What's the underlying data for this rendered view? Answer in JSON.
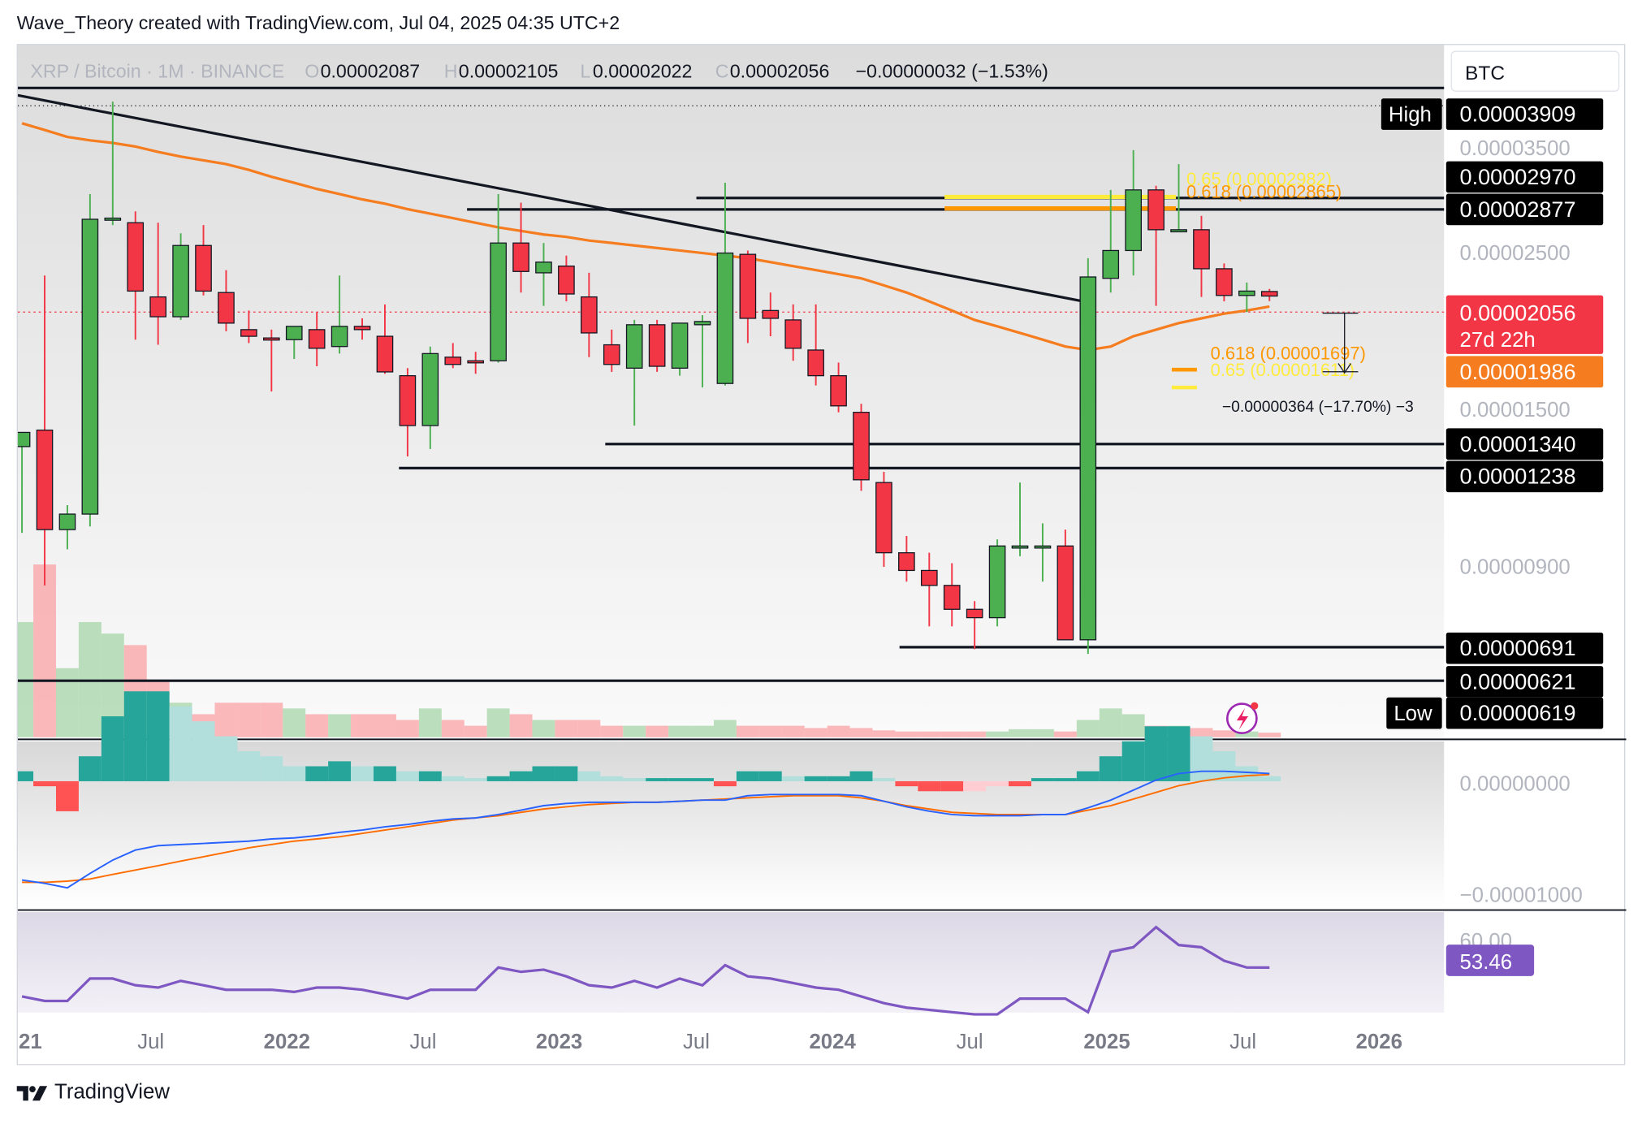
{
  "header": {
    "text": "Wave_Theory created with TradingView.com, Jul 04, 2025 04:35 UTC+2"
  },
  "footer": {
    "brand": "TradingView"
  },
  "colors": {
    "up": "#4caf50",
    "down": "#f23645",
    "ema": "#f57c1f",
    "macd": "#2962ff",
    "signal": "#ff6d00",
    "rsi": "#7e57c2",
    "fib_yellow": "#ffeb3b",
    "fib_orange": "#ff9800"
  },
  "icons": [
    "tradingview-logo-icon",
    "flash-icon"
  ],
  "symbol_bar": {
    "name": "XRP / Bitcoin · 1M · BINANCE",
    "o_label": "O",
    "o": "0.00002087",
    "h_label": "H",
    "h": "0.00002105",
    "l_label": "L",
    "l": "0.00002022",
    "c_label": "C",
    "c": "0.00002056",
    "change": "−0.00000032 (−1.53%)"
  },
  "currency": "BTC",
  "price_axis": {
    "high_label": "High",
    "high": "0.00003909",
    "low_label": "Low",
    "low": "0.00000619",
    "ticks": [
      "0.00003500",
      "0.00002500",
      "0.00001500",
      "0.00000900"
    ],
    "level_tags": [
      "0.00002970",
      "0.00002877",
      "0.00001340",
      "0.00001238",
      "0.00000691",
      "0.00000621"
    ],
    "last_price": "0.00002056",
    "countdown": "27d 22h",
    "ema_tag": "0.00001986"
  },
  "annotations": {
    "fib_upper_065": "0.65 (0.00002982)",
    "fib_upper_0618": "0.618 (0.00002865)",
    "fib_lower_0618": "0.618 (0.00001697)",
    "fib_lower_065": "0.65 (0.00001611)",
    "measure": "−0.00000364 (−17.70%) −3"
  },
  "macd_axis": {
    "ticks": [
      "0.00000000",
      "−0.00001000"
    ]
  },
  "rsi_axis": {
    "tick": "60.00",
    "value": "53.46"
  },
  "time_axis": [
    "21",
    "Jul",
    "2022",
    "Jul",
    "2023",
    "Jul",
    "2024",
    "Jul",
    "2025",
    "Jul",
    "2026"
  ],
  "chart_data": {
    "type": "candlestick",
    "title": "XRP / Bitcoin · 1M · BINANCE",
    "interval": "1M",
    "grid": false,
    "y_scale": "log",
    "ylim": [
      5.8e-06,
      4.2e-05
    ],
    "candles_columns": [
      "open",
      "high",
      "low",
      "close"
    ],
    "candles": [
      [
        1.25e-05,
        1.31e-05,
        9.4e-06,
        1.31e-05
      ],
      [
        1.32e-05,
        2.2e-05,
        7.9e-06,
        9.5e-06
      ],
      [
        9.5e-06,
        1.03e-05,
        8.9e-06,
        1e-05
      ],
      [
        1e-05,
        2.88e-05,
        9.6e-06,
        2.65e-05
      ],
      [
        2.65e-05,
        3.909e-05,
        2.6e-05,
        2.66e-05
      ],
      [
        2.62e-05,
        2.72e-05,
        1.78e-05,
        2.09e-05
      ],
      [
        2.05e-05,
        2.62e-05,
        1.75e-05,
        1.92e-05
      ],
      [
        1.92e-05,
        2.53e-05,
        1.9e-05,
        2.43e-05
      ],
      [
        2.43e-05,
        2.6e-05,
        2.06e-05,
        2.09e-05
      ],
      [
        2.08e-05,
        2.24e-05,
        1.83e-05,
        1.88e-05
      ],
      [
        1.84e-05,
        1.96e-05,
        1.76e-05,
        1.8e-05
      ],
      [
        1.79e-05,
        1.84e-05,
        1.5e-05,
        1.78e-05
      ],
      [
        1.78e-05,
        1.84e-05,
        1.67e-05,
        1.86e-05
      ],
      [
        1.84e-05,
        1.95e-05,
        1.63e-05,
        1.73e-05
      ],
      [
        1.74e-05,
        2.2e-05,
        1.7e-05,
        1.86e-05
      ],
      [
        1.86e-05,
        1.91e-05,
        1.78e-05,
        1.84e-05
      ],
      [
        1.8e-05,
        2e-05,
        1.59e-05,
        1.6e-05
      ],
      [
        1.58e-05,
        1.62e-05,
        1.21e-05,
        1.34e-05
      ],
      [
        1.34e-05,
        1.74e-05,
        1.24e-05,
        1.7e-05
      ],
      [
        1.68e-05,
        1.76e-05,
        1.62e-05,
        1.64e-05
      ],
      [
        1.66e-05,
        1.71e-05,
        1.59e-05,
        1.65e-05
      ],
      [
        1.66e-05,
        2.88e-05,
        1.65e-05,
        2.45e-05
      ],
      [
        2.45e-05,
        2.8e-05,
        2.08e-05,
        2.23e-05
      ],
      [
        2.22e-05,
        2.45e-05,
        1.99e-05,
        2.3e-05
      ],
      [
        2.27e-05,
        2.35e-05,
        2.02e-05,
        2.07e-05
      ],
      [
        2.05e-05,
        2.22e-05,
        1.68e-05,
        1.82e-05
      ],
      [
        1.75e-05,
        1.84e-05,
        1.6e-05,
        1.64e-05
      ],
      [
        1.62e-05,
        1.9e-05,
        1.34e-05,
        1.87e-05
      ],
      [
        1.87e-05,
        1.9e-05,
        1.6e-05,
        1.63e-05
      ],
      [
        1.62e-05,
        1.88e-05,
        1.58e-05,
        1.88e-05
      ],
      [
        1.87e-05,
        1.93e-05,
        1.52e-05,
        1.89e-05
      ],
      [
        1.54e-05,
        2.99e-05,
        1.53e-05,
        2.37e-05
      ],
      [
        2.36e-05,
        2.39e-05,
        1.76e-05,
        1.91e-05
      ],
      [
        1.96e-05,
        2.08e-05,
        1.8e-05,
        1.91e-05
      ],
      [
        1.9e-05,
        2e-05,
        1.66e-05,
        1.73e-05
      ],
      [
        1.72e-05,
        2e-05,
        1.53e-05,
        1.58e-05
      ],
      [
        1.58e-05,
        1.65e-05,
        1.4e-05,
        1.43e-05
      ],
      [
        1.4e-05,
        1.44e-05,
        1.08e-05,
        1.12e-05
      ],
      [
        1.11e-05,
        1.15e-05,
        8.4e-06,
        8.8e-06
      ],
      [
        8.8e-06,
        9.3e-06,
        8e-06,
        8.3e-06
      ],
      [
        8.3e-06,
        8.8e-06,
        6.9e-06,
        7.9e-06
      ],
      [
        7.9e-06,
        8.5e-06,
        6.9e-06,
        7.3e-06
      ],
      [
        7.3e-06,
        7.5e-06,
        6.4e-06,
        7.1e-06
      ],
      [
        7.1e-06,
        9.2e-06,
        6.9e-06,
        9e-06
      ],
      [
        9e-06,
        1.11e-05,
        8.7e-06,
        9e-06
      ],
      [
        9e-06,
        9.7e-06,
        8e-06,
        9e-06
      ],
      [
        9e-06,
        9.5e-06,
        6.6e-06,
        6.6e-06
      ],
      [
        6.6e-06,
        2.33e-05,
        6.3e-06,
        2.19e-05
      ],
      [
        2.18e-05,
        2.92e-05,
        2.08e-05,
        2.39e-05
      ],
      [
        2.39e-05,
        3.33e-05,
        2.2e-05,
        2.92e-05
      ],
      [
        2.92e-05,
        2.96e-05,
        1.99e-05,
        2.56e-05
      ],
      [
        2.56e-05,
        3.18e-05,
        2.54e-05,
        2.56e-05
      ],
      [
        2.56e-05,
        2.68e-05,
        2.05e-05,
        2.25e-05
      ],
      [
        2.25e-05,
        2.29e-05,
        2.02e-05,
        2.06e-05
      ],
      [
        2.06e-05,
        2.15e-05,
        1.95e-05,
        2.09e-05
      ],
      [
        2.087e-05,
        2.105e-05,
        2.022e-05,
        2.056e-05
      ]
    ],
    "ema": [
      3.64e-05,
      3.56e-05,
      3.48e-05,
      3.44e-05,
      3.41e-05,
      3.37e-05,
      3.31e-05,
      3.26e-05,
      3.22e-05,
      3.18e-05,
      3.12e-05,
      3.05e-05,
      2.99e-05,
      2.93e-05,
      2.88e-05,
      2.83e-05,
      2.79e-05,
      2.74e-05,
      2.7e-05,
      2.66e-05,
      2.62e-05,
      2.58e-05,
      2.55e-05,
      2.52e-05,
      2.5e-05,
      2.47e-05,
      2.45e-05,
      2.43e-05,
      2.41e-05,
      2.39e-05,
      2.37e-05,
      2.35e-05,
      2.33e-05,
      2.3e-05,
      2.27e-05,
      2.24e-05,
      2.21e-05,
      2.18e-05,
      2.13e-05,
      2.08e-05,
      2.02e-05,
      1.96e-05,
      1.9e-05,
      1.86e-05,
      1.82e-05,
      1.78e-05,
      1.74e-05,
      1.72e-05,
      1.74e-05,
      1.8e-05,
      1.84e-05,
      1.88e-05,
      1.91e-05,
      1.94e-05,
      1.96e-05,
      1.986e-05
    ],
    "volume": [
      1.0,
      1.5,
      0.6,
      1.0,
      0.9,
      0.8,
      0.5,
      0.3,
      0.2,
      0.3,
      0.3,
      0.3,
      0.25,
      0.2,
      0.2,
      0.2,
      0.2,
      0.15,
      0.25,
      0.15,
      0.1,
      0.25,
      0.2,
      0.15,
      0.15,
      0.15,
      0.1,
      0.1,
      0.1,
      0.1,
      0.1,
      0.15,
      0.1,
      0.1,
      0.1,
      0.08,
      0.1,
      0.08,
      0.06,
      0.05,
      0.05,
      0.05,
      0.05,
      0.05,
      0.07,
      0.07,
      0.05,
      0.15,
      0.25,
      0.2,
      0.1,
      0.1,
      0.08,
      0.06,
      0.05,
      0.04
    ],
    "macd": [
      -8.9e-06,
      -9.2e-06,
      -9.6e-06,
      -8.3e-06,
      -7.1e-06,
      -6.2e-06,
      -5.8e-06,
      -5.7e-06,
      -5.6e-06,
      -5.5e-06,
      -5.4e-06,
      -5.2e-06,
      -5.1e-06,
      -4.9e-06,
      -4.6e-06,
      -4.4e-06,
      -4.1e-06,
      -3.9e-06,
      -3.6e-06,
      -3.4e-06,
      -3.3e-06,
      -3e-06,
      -2.6e-06,
      -2.2e-06,
      -2e-06,
      -1.9e-06,
      -1.9e-06,
      -1.9e-06,
      -1.9e-06,
      -1.8e-06,
      -1.7e-06,
      -1.7e-06,
      -1.3e-06,
      -1.2e-06,
      -1.2e-06,
      -1.2e-06,
      -1.2e-06,
      -1.3e-06,
      -1.8e-06,
      -2.3e-06,
      -2.7e-06,
      -3e-06,
      -3.1e-06,
      -3.1e-06,
      -3.1e-06,
      -3e-06,
      -3e-06,
      -2.4e-06,
      -1.7e-06,
      -8e-07,
      1e-07,
      7e-07,
      9e-07,
      9e-07,
      8e-07,
      7e-07
    ],
    "macd_signal": [
      -9.1e-06,
      -9.1e-06,
      -9e-06,
      -8.8e-06,
      -8.4e-06,
      -8e-06,
      -7.6e-06,
      -7.2e-06,
      -6.8e-06,
      -6.4e-06,
      -6e-06,
      -5.7e-06,
      -5.4e-06,
      -5.2e-06,
      -5e-06,
      -4.7e-06,
      -4.4e-06,
      -4.1e-06,
      -3.8e-06,
      -3.5e-06,
      -3.3e-06,
      -3.1e-06,
      -2.8e-06,
      -2.5e-06,
      -2.3e-06,
      -2.1e-06,
      -2e-06,
      -1.9e-06,
      -1.9e-06,
      -1.8e-06,
      -1.7e-06,
      -1.6e-06,
      -1.5e-06,
      -1.4e-06,
      -1.3e-06,
      -1.3e-06,
      -1.3e-06,
      -1.5e-06,
      -1.8e-06,
      -2.2e-06,
      -2.5e-06,
      -2.8e-06,
      -2.9e-06,
      -3e-06,
      -3e-06,
      -3e-06,
      -3e-06,
      -2.6e-06,
      -2.2e-06,
      -1.6e-06,
      -1e-06,
      -4e-07,
      0.0,
      3e-07,
      5e-07,
      6e-07
    ],
    "rsi": [
      47.0,
      46.0,
      46.0,
      51.0,
      51.0,
      49.5,
      49.0,
      50.5,
      49.5,
      48.5,
      48.5,
      48.5,
      48.0,
      49.0,
      49.0,
      48.5,
      47.5,
      46.5,
      48.5,
      48.5,
      48.5,
      53.5,
      52.5,
      53.0,
      51.5,
      49.5,
      49.0,
      50.5,
      49.0,
      51.0,
      49.5,
      54.0,
      51.5,
      51.0,
      50.0,
      49.0,
      48.5,
      47.0,
      45.5,
      44.5,
      44.0,
      43.5,
      43.0,
      43.0,
      46.5,
      46.5,
      46.5,
      43.5,
      57.0,
      58.0,
      62.5,
      58.5,
      58.0,
      55.0,
      53.5,
      53.46
    ]
  }
}
